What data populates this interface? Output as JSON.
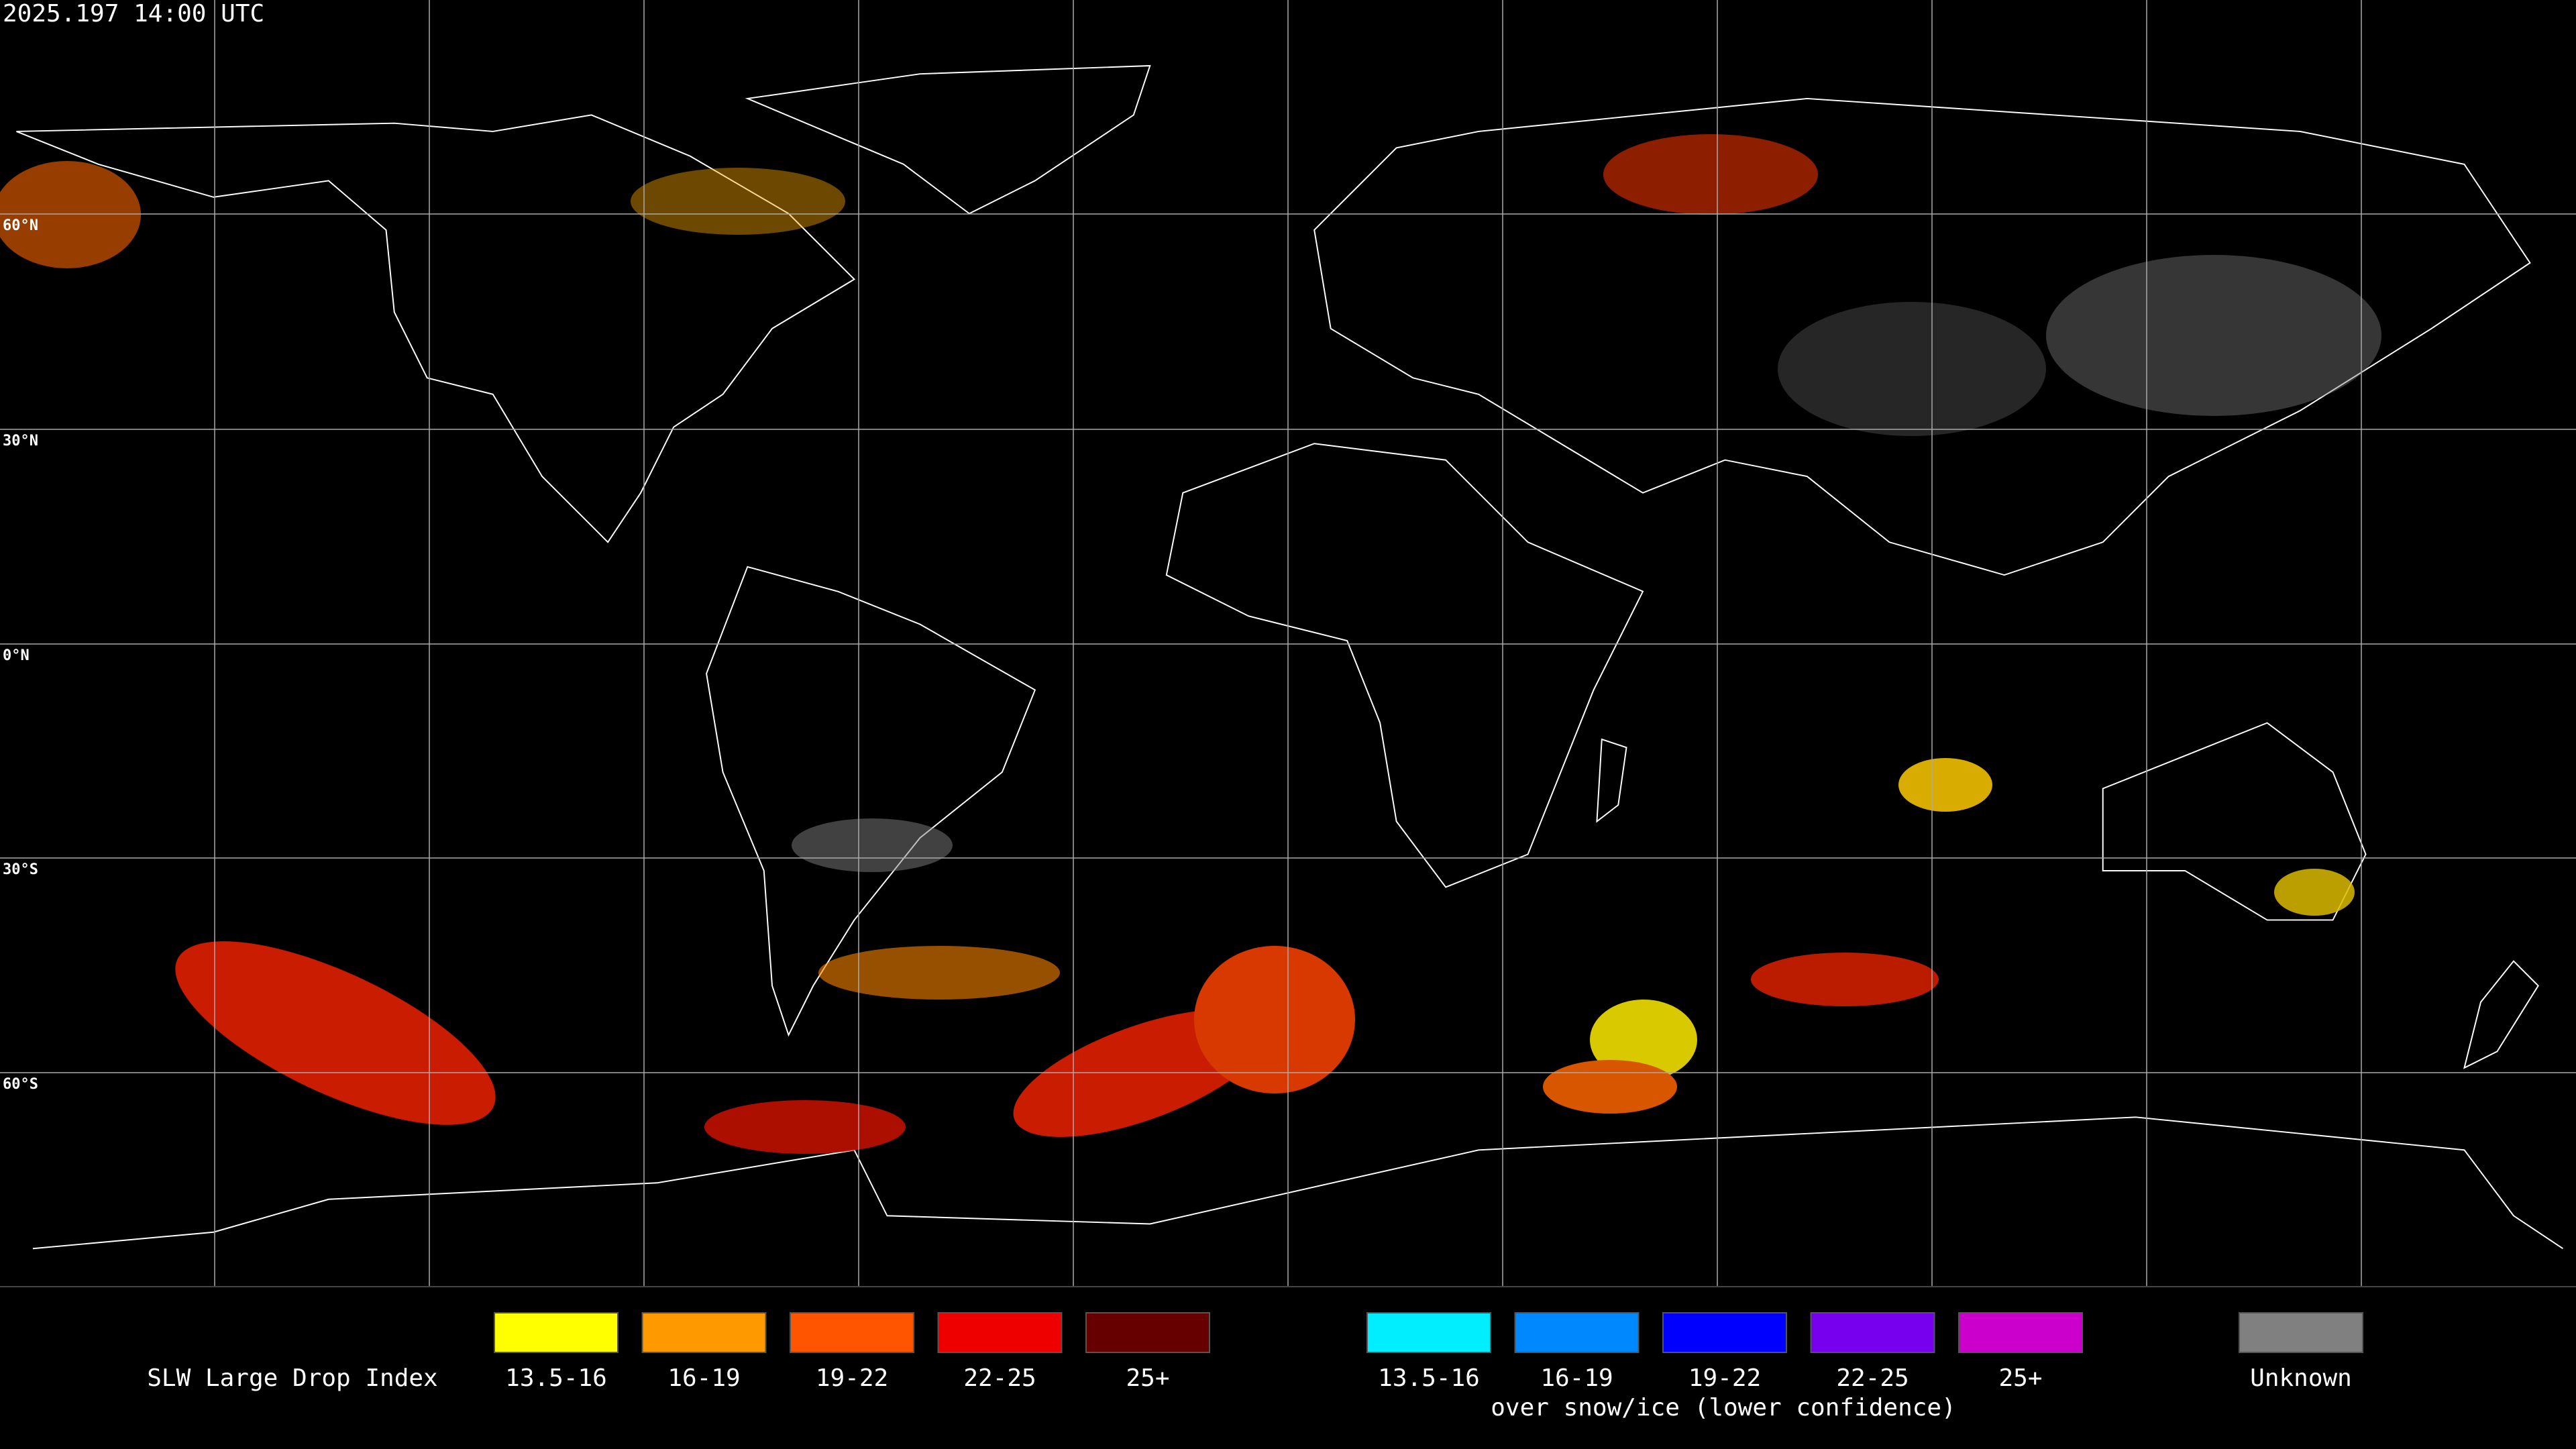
{
  "header": {
    "timestamp": "2025.197 14:00 UTC"
  },
  "map": {
    "latitude_labels": [
      "60°N",
      "30°N",
      "0°N",
      "30°S",
      "60°S"
    ]
  },
  "legend": {
    "title": "SLW Large Drop Index",
    "groups": [
      {
        "items": [
          {
            "label": "13.5-16",
            "color": "#ffff00"
          },
          {
            "label": "16-19",
            "color": "#ff9900"
          },
          {
            "label": "19-22",
            "color": "#ff5500"
          },
          {
            "label": "22-25",
            "color": "#ee0000"
          },
          {
            "label": "25+",
            "color": "#660000"
          }
        ]
      },
      {
        "items": [
          {
            "label": "13.5-16",
            "color": "#00eeff"
          },
          {
            "label": "16-19",
            "color": "#0088ff"
          },
          {
            "label": "19-22",
            "color": "#0000ff"
          },
          {
            "label": "22-25",
            "color": "#7700ee"
          },
          {
            "label": "25+",
            "color": "#cc00cc"
          }
        ],
        "note": "over snow/ice (lower confidence)"
      },
      {
        "items": [
          {
            "label": "Unknown",
            "color": "#808080"
          }
        ]
      }
    ]
  }
}
